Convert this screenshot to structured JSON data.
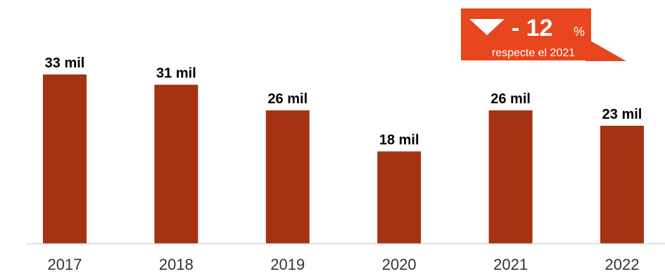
{
  "chart_data": {
    "type": "bar",
    "categories": [
      "2017",
      "2018",
      "2019",
      "2020",
      "2021",
      "2022"
    ],
    "values": [
      33,
      31,
      26,
      18,
      26,
      23
    ],
    "data_labels": [
      "33 mil",
      "31 mil",
      "26 mil",
      "18 mil",
      "26 mil",
      "23 mil"
    ],
    "title": "",
    "xlabel": "",
    "ylabel": "",
    "ylim": [
      0,
      33
    ],
    "grid": false,
    "bar_color": "#A63214"
  },
  "callout": {
    "value": "- 12",
    "unit": "%",
    "subtitle": "respecte el 2021",
    "direction_icon": "triangle-down-icon",
    "color": "#E8461E"
  }
}
